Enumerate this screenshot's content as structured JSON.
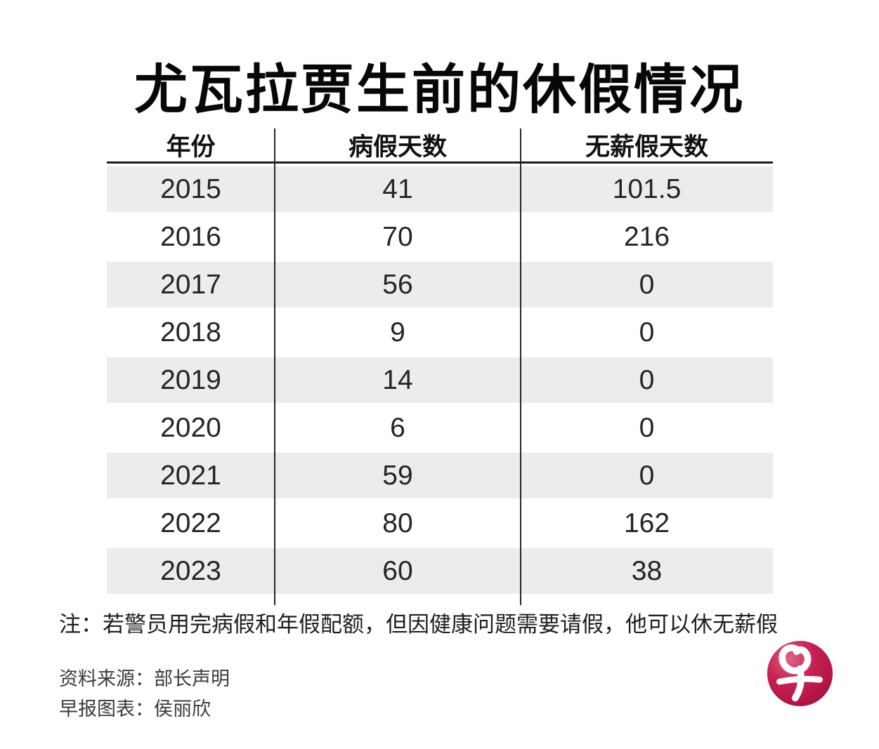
{
  "title": "尤瓦拉贾生前的休假情况",
  "table": {
    "columns": [
      "年份",
      "病假天数",
      "无薪假天数"
    ],
    "rows": [
      {
        "year": "2015",
        "sick": "41",
        "unpaid": "101.5"
      },
      {
        "year": "2016",
        "sick": "70",
        "unpaid": "216"
      },
      {
        "year": "2017",
        "sick": "56",
        "unpaid": "0"
      },
      {
        "year": "2018",
        "sick": "9",
        "unpaid": "0"
      },
      {
        "year": "2019",
        "sick": "14",
        "unpaid": "0"
      },
      {
        "year": "2020",
        "sick": "6",
        "unpaid": "0"
      },
      {
        "year": "2021",
        "sick": "59",
        "unpaid": "0"
      },
      {
        "year": "2022",
        "sick": "80",
        "unpaid": "162"
      },
      {
        "year": "2023",
        "sick": "60",
        "unpaid": "38"
      }
    ]
  },
  "note": "注：若警员用完病假和年假配额，但因健康问题需要请假，他可以休无薪假",
  "source": {
    "line1": "资料来源：部长声明",
    "line2": "早报图表：侯丽欣"
  },
  "logo": {
    "glyph": "早",
    "circle_color": "#c21c4b",
    "glyph_color": "#ffffff"
  },
  "colors": {
    "row_stripe": "#ececec",
    "divider": "#262626",
    "text": "#1d1d1d"
  },
  "chart_data": {
    "type": "table",
    "title": "尤瓦拉贾生前的休假情况",
    "columns": [
      "年份",
      "病假天数",
      "无薪假天数"
    ],
    "rows": [
      [
        2015,
        41,
        101.5
      ],
      [
        2016,
        70,
        216
      ],
      [
        2017,
        56,
        0
      ],
      [
        2018,
        9,
        0
      ],
      [
        2019,
        14,
        0
      ],
      [
        2020,
        6,
        0
      ],
      [
        2021,
        59,
        0
      ],
      [
        2022,
        80,
        162
      ],
      [
        2023,
        60,
        38
      ]
    ],
    "note": "注：若警员用完病假和年假配额，但因健康问题需要请假，他可以休无薪假",
    "source": "资料来源：部长声明",
    "credit": "早报图表：侯丽欣",
    "layout": {
      "stripe_rows": "odd",
      "grid": "column-dividers-only"
    }
  }
}
